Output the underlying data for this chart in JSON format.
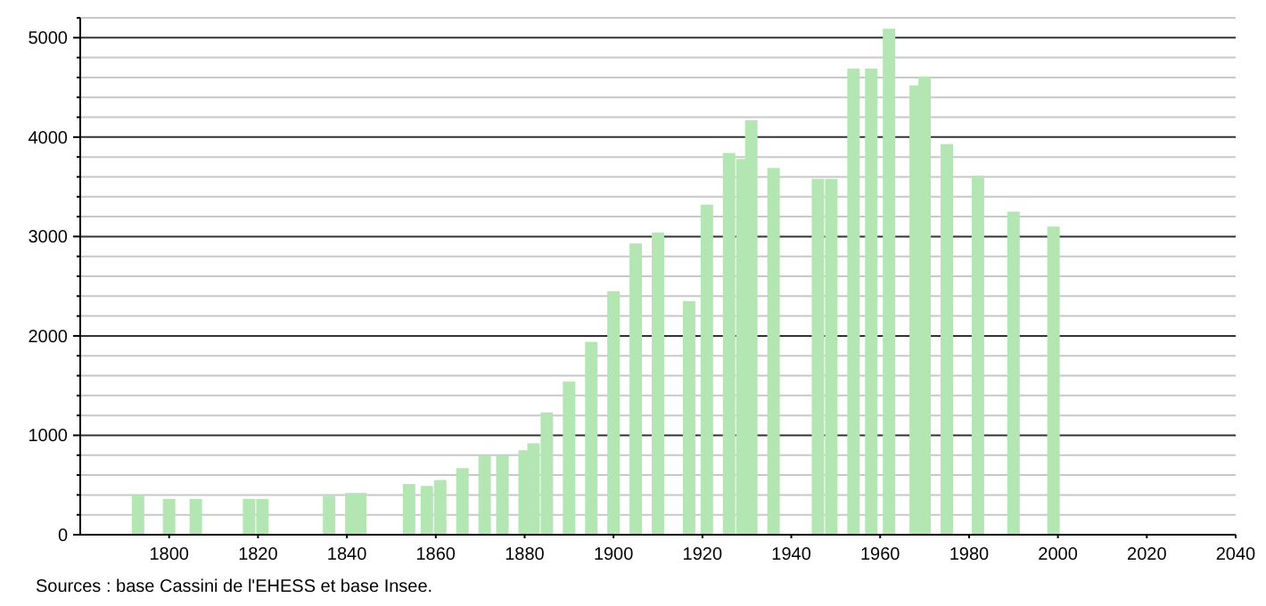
{
  "chart_data": {
    "type": "bar",
    "x": [
      1793,
      1800,
      1806,
      1818,
      1821,
      1836,
      1841,
      1843,
      1854,
      1858,
      1861,
      1866,
      1871,
      1875,
      1880,
      1882,
      1885,
      1890,
      1895,
      1900,
      1905,
      1910,
      1917,
      1921,
      1926,
      1929,
      1931,
      1936,
      1946,
      1949,
      1954,
      1958,
      1962,
      1968,
      1970,
      1975,
      1982,
      1990,
      1999
    ],
    "values": [
      400,
      360,
      360,
      360,
      360,
      390,
      420,
      420,
      510,
      490,
      550,
      670,
      800,
      800,
      850,
      920,
      1230,
      1540,
      1940,
      2450,
      2930,
      3040,
      2350,
      3320,
      3840,
      3780,
      4170,
      3690,
      3580,
      3580,
      4690,
      4690,
      5090,
      4520,
      4610,
      3930,
      3610,
      3250,
      3100
    ],
    "color": "#b3e6b3",
    "xlim": [
      1780,
      2040
    ],
    "xticks": [
      1800,
      1820,
      1840,
      1860,
      1880,
      1900,
      1920,
      1940,
      1960,
      1980,
      2000,
      2020,
      2040
    ],
    "ylim": [
      0,
      5200
    ],
    "yticks": [
      0,
      {
        "value": 200,
        "label": null
      },
      {
        "value": 400,
        "label": null
      },
      {
        "value": 600,
        "label": null
      },
      {
        "value": 800,
        "label": null
      },
      1000,
      {
        "value": 1200,
        "label": null
      },
      {
        "value": 1400,
        "label": null
      },
      {
        "value": 1600,
        "label": null
      },
      {
        "value": 1800,
        "label": null
      },
      2000,
      {
        "value": 2200,
        "label": null
      },
      {
        "value": 2400,
        "label": null
      },
      {
        "value": 2600,
        "label": null
      },
      {
        "value": 2800,
        "label": null
      },
      3000,
      {
        "value": 3200,
        "label": null
      },
      {
        "value": 3400,
        "label": null
      },
      {
        "value": 3600,
        "label": null
      },
      {
        "value": 3800,
        "label": null
      },
      4000,
      {
        "value": 4200,
        "label": null
      },
      {
        "value": 4400,
        "label": null
      },
      {
        "value": 4600,
        "label": null
      },
      {
        "value": 4800,
        "label": null
      },
      5000,
      {
        "value": 5200,
        "label": null
      }
    ],
    "grid": true,
    "annotations": [
      "Sources : base Cassini de l'EHESS et base Insee."
    ]
  }
}
